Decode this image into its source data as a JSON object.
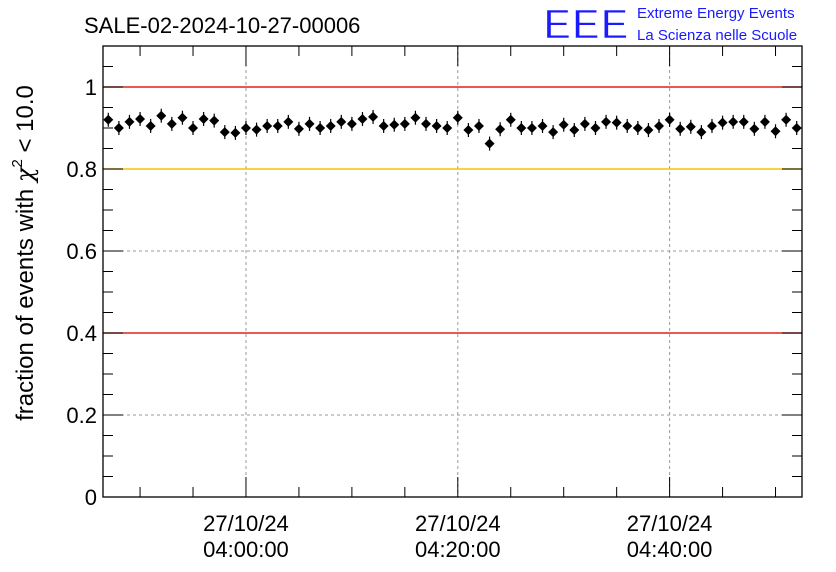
{
  "chart_data": {
    "type": "scatter",
    "title": "SALE-02-2024-10-27-00006",
    "ylabel_main": "fraction of events with ",
    "ylabel_chi": "χ",
    "ylabel_exp": "2",
    "ylabel_tail": " < 10.0",
    "ylim": [
      0,
      1.1
    ],
    "y_major_ticks": [
      0,
      0.2,
      0.4,
      0.6,
      0.8,
      1
    ],
    "y_tick_labels": [
      "0",
      "0.2",
      "0.4",
      "0.6",
      "0.8",
      "1"
    ],
    "x_range_minutes": [
      -13.5,
      52.5
    ],
    "x_major_ticks": [
      {
        "date": "27/10/24",
        "time": "04:00:00",
        "minute": 0
      },
      {
        "date": "27/10/24",
        "time": "04:20:00",
        "minute": 20
      },
      {
        "date": "27/10/24",
        "time": "04:40:00",
        "minute": 40
      }
    ],
    "grid": true,
    "reference_lines": [
      {
        "y": 1.0,
        "color": "#e0201c"
      },
      {
        "y": 0.8,
        "color": "#f5c400"
      },
      {
        "y": 0.4,
        "color": "#e0201c"
      }
    ],
    "points": {
      "x": [
        -13,
        -12,
        -11,
        -10,
        -9,
        -8,
        -7,
        -6,
        -5,
        -4,
        -3,
        -2,
        -1,
        0,
        1,
        2,
        3,
        4,
        5,
        6,
        7,
        8,
        9,
        10,
        11,
        12,
        13,
        14,
        15,
        16,
        17,
        18,
        19,
        20,
        21,
        22,
        23,
        24,
        25,
        26,
        27,
        28,
        29,
        30,
        31,
        32,
        33,
        34,
        35,
        36,
        37,
        38,
        39,
        40,
        41,
        42,
        43,
        44,
        45,
        46,
        47,
        48,
        49,
        50,
        51,
        52
      ],
      "y": [
        0.92,
        0.9,
        0.915,
        0.922,
        0.905,
        0.93,
        0.91,
        0.925,
        0.9,
        0.922,
        0.918,
        0.89,
        0.888,
        0.9,
        0.896,
        0.905,
        0.905,
        0.915,
        0.898,
        0.91,
        0.9,
        0.905,
        0.915,
        0.91,
        0.922,
        0.927,
        0.905,
        0.908,
        0.91,
        0.925,
        0.91,
        0.905,
        0.9,
        0.925,
        0.895,
        0.905,
        0.862,
        0.897,
        0.92,
        0.9,
        0.9,
        0.905,
        0.89,
        0.908,
        0.895,
        0.91,
        0.9,
        0.915,
        0.913,
        0.905,
        0.9,
        0.895,
        0.905,
        0.92,
        0.898,
        0.903,
        0.89,
        0.905,
        0.913,
        0.915,
        0.915,
        0.898,
        0.915,
        0.892,
        0.92,
        0.9
      ],
      "color": "#000000"
    }
  },
  "logo": {
    "letters": "EEE",
    "line1": "Extreme Energy Events",
    "line2": "La Scienza nelle Scuole",
    "color": "#1a1aff"
  }
}
